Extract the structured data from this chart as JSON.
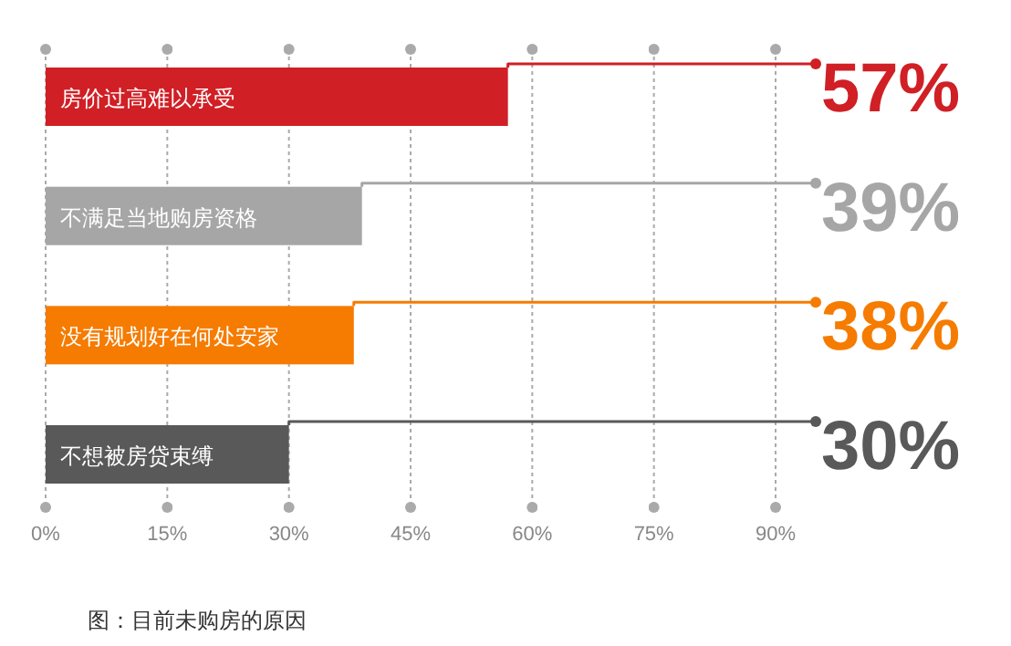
{
  "chart_data": {
    "type": "bar",
    "orientation": "horizontal",
    "categories": [
      "房价过高难以承受",
      "不满足当地购房资格",
      "没有规划好在何处安家",
      "不想被房贷束缚"
    ],
    "values": [
      57,
      39,
      38,
      30
    ],
    "colors": [
      "#d01f25",
      "#a6a6a6",
      "#f57c00",
      "#595959"
    ],
    "value_labels": [
      "57%",
      "39%",
      "38%",
      "30%"
    ],
    "xlim": [
      0,
      90
    ],
    "xticks": [
      {
        "value": 0,
        "label": "0%"
      },
      {
        "value": 15,
        "label": "15%"
      },
      {
        "value": 30,
        "label": "30%"
      },
      {
        "value": 45,
        "label": "45%"
      },
      {
        "value": 60,
        "label": "60%"
      },
      {
        "value": 75,
        "label": "75%"
      },
      {
        "value": 90,
        "label": "90%"
      }
    ],
    "grid": "x",
    "annotations": [
      "图：目前未购房的原因"
    ]
  }
}
